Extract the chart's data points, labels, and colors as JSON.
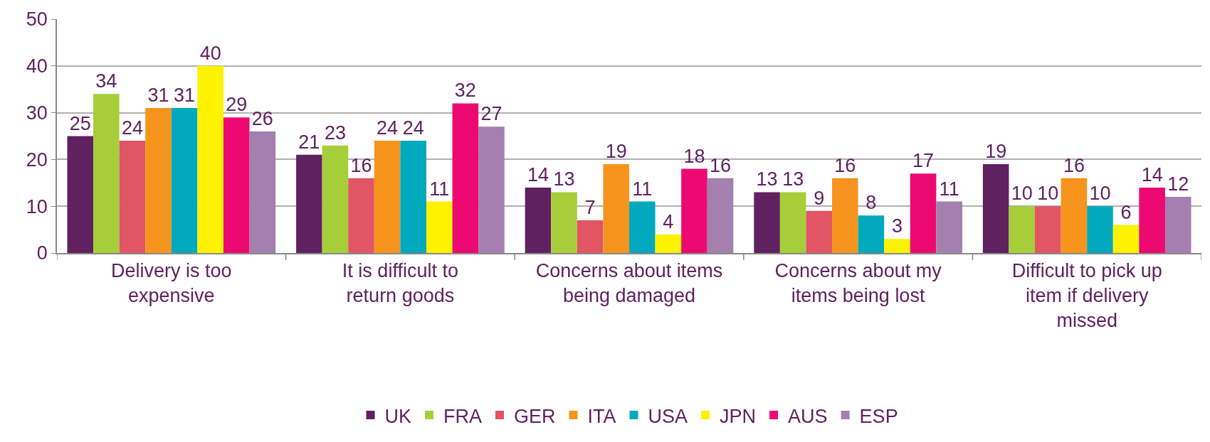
{
  "chart_data": {
    "type": "bar",
    "categories": [
      "Delivery is too expensive",
      "It is difficult to return goods",
      "Concerns about items being damaged",
      "Concerns about my items being lost",
      "Difficult to pick up item if delivery missed"
    ],
    "series": [
      {
        "name": "UK",
        "color": "#5f2160",
        "values": [
          25,
          21,
          14,
          13,
          19
        ]
      },
      {
        "name": "FRA",
        "color": "#a6ce39",
        "values": [
          34,
          23,
          13,
          13,
          10
        ]
      },
      {
        "name": "GER",
        "color": "#e15565",
        "values": [
          24,
          16,
          7,
          9,
          10
        ]
      },
      {
        "name": "ITA",
        "color": "#f7941d",
        "values": [
          31,
          24,
          19,
          16,
          16
        ]
      },
      {
        "name": "USA",
        "color": "#00a9bd",
        "values": [
          31,
          24,
          11,
          8,
          10
        ]
      },
      {
        "name": "JPN",
        "color": "#fff200",
        "values": [
          40,
          11,
          4,
          3,
          6
        ]
      },
      {
        "name": "AUS",
        "color": "#ec0a72",
        "values": [
          29,
          32,
          18,
          17,
          14
        ]
      },
      {
        "name": "ESP",
        "color": "#a47faf",
        "values": [
          26,
          27,
          16,
          11,
          12
        ]
      }
    ],
    "ylim": [
      0,
      50
    ],
    "yticks": [
      0,
      10,
      20,
      30,
      40,
      50
    ],
    "grid": "y",
    "legend": "bottom",
    "data_labels": true
  }
}
